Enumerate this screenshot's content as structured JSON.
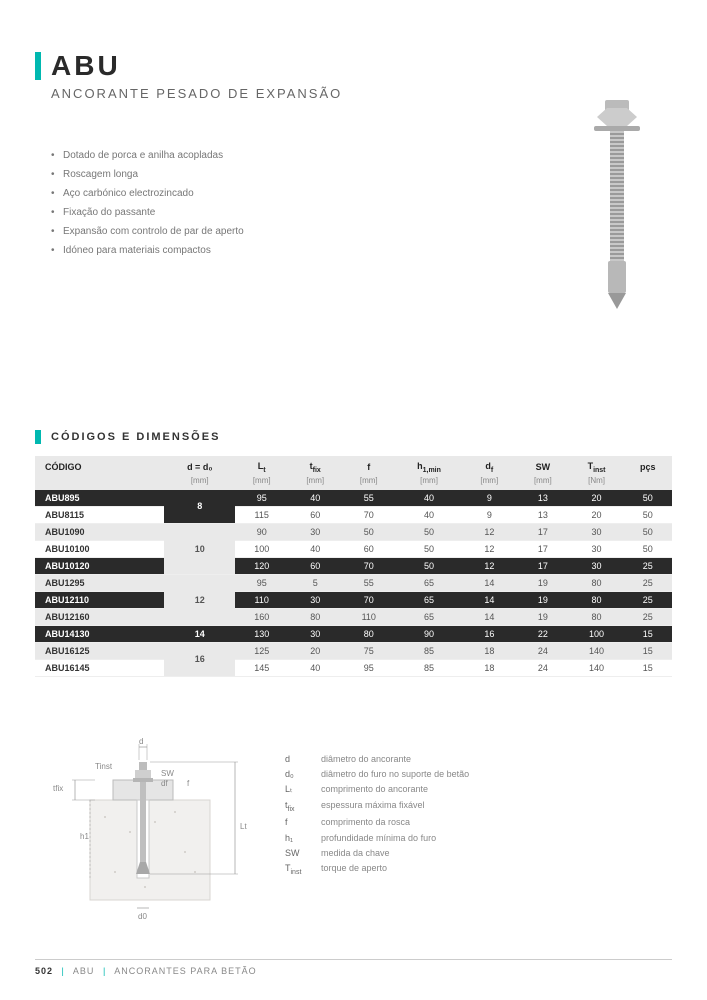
{
  "header": {
    "title": "ABU",
    "subtitle": "ANCORANTE PESADO DE EXPANSÃO"
  },
  "features": [
    "Dotado de porca e anilha acopladas",
    "Roscagem longa",
    "Aço carbónico electrozincado",
    "Fixação do passante",
    "Expansão com controlo de par de aperto",
    "Idóneo para materiais compactos"
  ],
  "section_title": "CÓDIGOS E DIMENSÕES",
  "table": {
    "columns": [
      "CÓDIGO",
      "d = d₀",
      "Lₜ",
      "tfix",
      "f",
      "h1,min",
      "df",
      "SW",
      "Tinst",
      "pçs"
    ],
    "units": [
      "",
      "[mm]",
      "[mm]",
      "[mm]",
      "[mm]",
      "[mm]",
      "[mm]",
      "[mm]",
      "[Nm]",
      ""
    ],
    "groups": [
      {
        "diam": "8",
        "rows": [
          {
            "code": "ABU895",
            "vals": [
              "95",
              "40",
              "55",
              "40",
              "9",
              "13",
              "20",
              "50"
            ],
            "style": "dark"
          },
          {
            "code": "ABU8115",
            "vals": [
              "115",
              "60",
              "70",
              "40",
              "9",
              "13",
              "20",
              "50"
            ],
            "style": ""
          }
        ]
      },
      {
        "diam": "10",
        "rows": [
          {
            "code": "ABU1090",
            "vals": [
              "90",
              "30",
              "50",
              "50",
              "12",
              "17",
              "30",
              "50"
            ],
            "style": "shade"
          },
          {
            "code": "ABU10100",
            "vals": [
              "100",
              "40",
              "60",
              "50",
              "12",
              "17",
              "30",
              "50"
            ],
            "style": ""
          },
          {
            "code": "ABU10120",
            "vals": [
              "120",
              "60",
              "70",
              "50",
              "12",
              "17",
              "30",
              "25"
            ],
            "style": "dark"
          }
        ]
      },
      {
        "diam": "12",
        "rows": [
          {
            "code": "ABU1295",
            "vals": [
              "95",
              "5",
              "55",
              "65",
              "14",
              "19",
              "80",
              "25"
            ],
            "style": "shade"
          },
          {
            "code": "ABU12110",
            "vals": [
              "110",
              "30",
              "70",
              "65",
              "14",
              "19",
              "80",
              "25"
            ],
            "style": "dark"
          },
          {
            "code": "ABU12160",
            "vals": [
              "160",
              "80",
              "110",
              "65",
              "14",
              "19",
              "80",
              "25"
            ],
            "style": "shade"
          }
        ]
      },
      {
        "diam": "14",
        "rows": [
          {
            "code": "ABU14130",
            "vals": [
              "130",
              "30",
              "80",
              "90",
              "16",
              "22",
              "100",
              "15"
            ],
            "style": "dark"
          }
        ]
      },
      {
        "diam": "16",
        "rows": [
          {
            "code": "ABU16125",
            "vals": [
              "125",
              "20",
              "75",
              "85",
              "18",
              "24",
              "140",
              "15"
            ],
            "style": "shade"
          },
          {
            "code": "ABU16145",
            "vals": [
              "145",
              "40",
              "95",
              "85",
              "18",
              "24",
              "140",
              "15"
            ],
            "style": ""
          }
        ]
      }
    ]
  },
  "diagram": {
    "labels": {
      "d": "d",
      "tinst": "Tinst",
      "tfix": "tfix",
      "sw": "SW",
      "df": "df",
      "f": "f",
      "lt": "Lt",
      "h1": "h1",
      "d0": "d0"
    }
  },
  "legend": [
    {
      "sym": "d",
      "desc": "diâmetro do ancorante"
    },
    {
      "sym": "d₀",
      "desc": "diâmetro do furo no suporte de betão"
    },
    {
      "sym": "Lₜ",
      "desc": "comprimento do ancorante"
    },
    {
      "sym": "tfix",
      "desc": "espessura máxima fixável"
    },
    {
      "sym": "f",
      "desc": "comprimento da rosca"
    },
    {
      "sym": "h₁",
      "desc": "profundidade mínima do furo"
    },
    {
      "sym": "SW",
      "desc": "medida da chave"
    },
    {
      "sym": "Tinst",
      "desc": "torque de aperto"
    }
  ],
  "footer": {
    "page": "502",
    "code": "ABU",
    "category": "ANCORANTES PARA BETÃO"
  }
}
